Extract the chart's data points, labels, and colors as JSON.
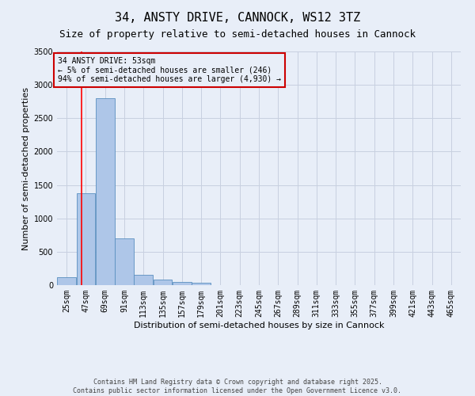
{
  "title": "34, ANSTY DRIVE, CANNOCK, WS12 3TZ",
  "subtitle": "Size of property relative to semi-detached houses in Cannock",
  "xlabel": "Distribution of semi-detached houses by size in Cannock",
  "ylabel": "Number of semi-detached properties",
  "bins": [
    25,
    47,
    69,
    91,
    113,
    135,
    157,
    179,
    201,
    223,
    245,
    267,
    289,
    311,
    333,
    355,
    377,
    399,
    421,
    443,
    465
  ],
  "values": [
    120,
    1380,
    2800,
    700,
    150,
    80,
    50,
    30,
    0,
    0,
    0,
    0,
    0,
    0,
    0,
    0,
    0,
    0,
    0,
    0
  ],
  "bar_color": "#aec6e8",
  "bar_edge_color": "#5a8fc0",
  "bg_color": "#e8eef8",
  "grid_color": "#c8d0e0",
  "red_line_x": 53,
  "annotation_text": "34 ANSTY DRIVE: 53sqm\n← 5% of semi-detached houses are smaller (246)\n94% of semi-detached houses are larger (4,930) →",
  "annotation_box_color": "#cc0000",
  "ylim": [
    0,
    3500
  ],
  "yticks": [
    0,
    500,
    1000,
    1500,
    2000,
    2500,
    3000,
    3500
  ],
  "copyright_text": "Contains HM Land Registry data © Crown copyright and database right 2025.\nContains public sector information licensed under the Open Government Licence v3.0.",
  "title_fontsize": 11,
  "subtitle_fontsize": 9,
  "axis_label_fontsize": 8,
  "tick_fontsize": 7,
  "annotation_fontsize": 7,
  "copyright_fontsize": 6
}
